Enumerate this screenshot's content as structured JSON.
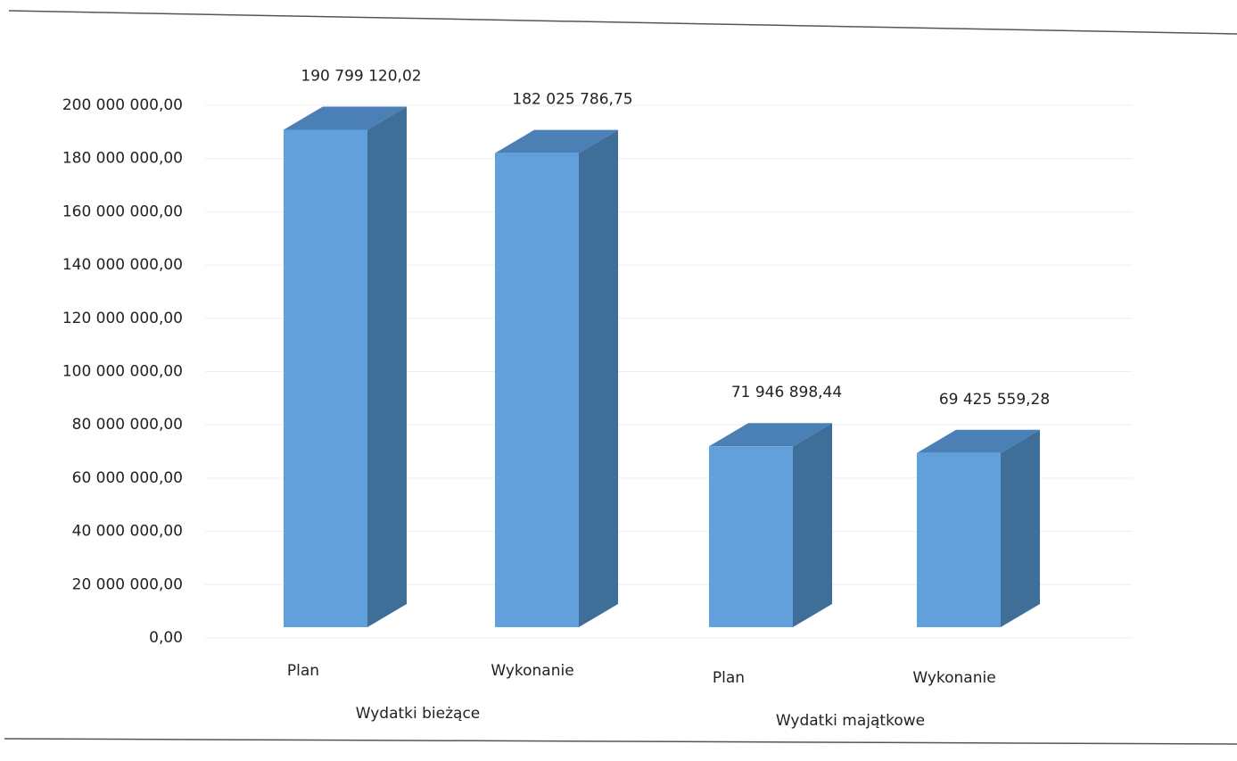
{
  "chart_data": {
    "type": "bar3d",
    "categories": [
      "Plan",
      "Wykonanie",
      "Plan",
      "Wykonanie"
    ],
    "groups": [
      {
        "name": "Wydatki bieżące",
        "span": [
          0,
          1
        ]
      },
      {
        "name": "Wydatki majątkowe",
        "span": [
          2,
          3
        ]
      }
    ],
    "values": [
      190799120.02,
      182025786.75,
      71946898.44,
      69425559.28
    ],
    "value_labels": [
      "190 799 120,02",
      "182 025 786,75",
      "71 946 898,44",
      "69 425 559,28"
    ],
    "color": "#62a0dc",
    "ylim": [
      0,
      200000000
    ],
    "yticks": [
      {
        "value": 0,
        "label": "0,00"
      },
      {
        "value": 20000000,
        "label": "20 000 000,00"
      },
      {
        "value": 40000000,
        "label": "40 000 000,00"
      },
      {
        "value": 60000000,
        "label": "60 000 000,00"
      },
      {
        "value": 80000000,
        "label": "80 000 000,00"
      },
      {
        "value": 100000000,
        "label": "100 000 000,00"
      },
      {
        "value": 120000000,
        "label": "120 000 000,00"
      },
      {
        "value": 140000000,
        "label": "140 000 000,00"
      },
      {
        "value": 160000000,
        "label": "160 000 000,00"
      },
      {
        "value": 180000000,
        "label": "180 000 000,00"
      },
      {
        "value": 200000000,
        "label": "200 000 000,00"
      }
    ],
    "grid": true
  }
}
